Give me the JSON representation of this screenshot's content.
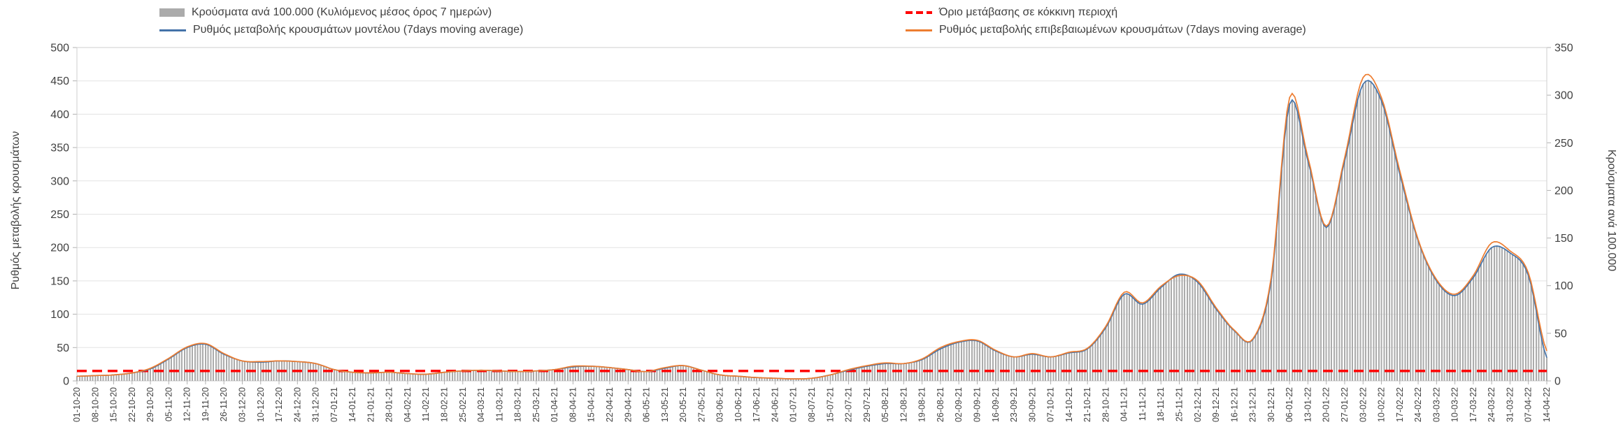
{
  "legend": {
    "items": [
      {
        "id": "bars",
        "label": "Κρούσματα ανά 100.000 (Κυλιόμενος μέσος όρος 7 ημερών)"
      },
      {
        "id": "threshold",
        "label": "Όριο μετάβασης σε κόκκινη περιοχή"
      },
      {
        "id": "model",
        "label": "Ρυθμός μεταβολής κρουσμάτων μοντέλου (7days moving average)"
      },
      {
        "id": "confirmed",
        "label": "Ρυθμός μεταβολής επιβεβαιωμένων κρουσμάτων (7days moving average)"
      }
    ]
  },
  "chart_data": {
    "type": "combo",
    "ylabel_left": "Ρυθμός μεταβολής κρουσμάτων",
    "ylabel_right": "Κρούσματα ανά 100.000",
    "left_ylim": [
      0,
      500
    ],
    "right_ylim": [
      0,
      350
    ],
    "left_ticks": [
      0,
      50,
      100,
      150,
      200,
      250,
      300,
      350,
      400,
      450,
      500
    ],
    "right_ticks": [
      0,
      50,
      100,
      150,
      200,
      250,
      300,
      350
    ],
    "grid": true,
    "legend_position": "top",
    "x": [
      "01-10-20",
      "08-10-20",
      "15-10-20",
      "22-10-20",
      "29-10-20",
      "05-11-20",
      "12-11-20",
      "19-11-20",
      "26-11-20",
      "03-12-20",
      "10-12-20",
      "17-12-20",
      "24-12-20",
      "31-12-20",
      "07-01-21",
      "14-01-21",
      "21-01-21",
      "28-01-21",
      "04-02-21",
      "11-02-21",
      "18-02-21",
      "25-02-21",
      "04-03-21",
      "11-03-21",
      "18-03-21",
      "25-03-21",
      "01-04-21",
      "08-04-21",
      "15-04-21",
      "22-04-21",
      "29-04-21",
      "06-05-21",
      "13-05-21",
      "20-05-21",
      "27-05-21",
      "03-06-21",
      "10-06-21",
      "17-06-21",
      "24-06-21",
      "01-07-21",
      "08-07-21",
      "15-07-21",
      "22-07-21",
      "29-07-21",
      "05-08-21",
      "12-08-21",
      "19-08-21",
      "26-08-21",
      "02-09-21",
      "09-09-21",
      "16-09-21",
      "23-09-21",
      "30-09-21",
      "07-10-21",
      "14-10-21",
      "21-10-21",
      "28-10-21",
      "04-11-21",
      "11-11-21",
      "18-11-21",
      "25-11-21",
      "02-12-21",
      "09-12-21",
      "16-12-21",
      "23-12-21",
      "30-12-21",
      "06-01-22",
      "13-01-22",
      "20-01-22",
      "27-01-22",
      "03-02-22",
      "10-02-22",
      "17-02-22",
      "24-02-22",
      "03-03-22",
      "10-03-22",
      "17-03-22",
      "24-03-22",
      "31-03-22",
      "07-04-22",
      "14-04-22"
    ],
    "series": [
      {
        "id": "cases-per-100k",
        "name": "Κρούσματα ανά 100.000 (Κυλιόμενος μέσος όρος 7 ημερών)",
        "type": "bar",
        "axis": "right",
        "color": "#ababab",
        "values": [
          5,
          6,
          6,
          8,
          13,
          23,
          35,
          39,
          28,
          21,
          20,
          21,
          20,
          18,
          12,
          9,
          8,
          9,
          8,
          7,
          9,
          11,
          11,
          11,
          10,
          11,
          12,
          15,
          15,
          14,
          12,
          10,
          13,
          16,
          11,
          6,
          5,
          4,
          3,
          2,
          3,
          6,
          11,
          15,
          18,
          18,
          22,
          34,
          41,
          42,
          32,
          25,
          28,
          25,
          29,
          34,
          56,
          91,
          81,
          98,
          112,
          104,
          76,
          53,
          43,
          105,
          291,
          231,
          161,
          231,
          312,
          294,
          217,
          147,
          105,
          90,
          109,
          140,
          134,
          111,
          25
        ]
      },
      {
        "id": "model-rate",
        "name": "Ρυθμός μεταβολής κρουσμάτων μοντέλου (7days moving average)",
        "type": "line",
        "axis": "left",
        "color": "#4472a8",
        "values": [
          7,
          8,
          9,
          12,
          18,
          33,
          50,
          55,
          40,
          30,
          28,
          30,
          29,
          26,
          17,
          13,
          12,
          13,
          11,
          10,
          13,
          15,
          16,
          15,
          14,
          15,
          17,
          21,
          22,
          20,
          17,
          14,
          19,
          23,
          16,
          9,
          7,
          5,
          4,
          3,
          4,
          9,
          16,
          22,
          26,
          26,
          32,
          48,
          58,
          60,
          45,
          36,
          40,
          36,
          42,
          48,
          80,
          130,
          115,
          140,
          160,
          148,
          108,
          75,
          62,
          150,
          415,
          330,
          230,
          330,
          445,
          420,
          310,
          210,
          150,
          128,
          155,
          200,
          192,
          158,
          35
        ]
      },
      {
        "id": "confirmed-rate",
        "name": "Ρυθμός μεταβολής επιβεβαιωμένων κρουσμάτων (7days moving average)",
        "type": "line",
        "axis": "left",
        "color": "#ed7d31",
        "values": [
          7,
          8,
          9,
          12,
          19,
          34,
          51,
          56,
          41,
          30,
          29,
          30,
          29,
          26,
          17,
          13,
          12,
          13,
          11,
          10,
          13,
          15,
          16,
          15,
          14,
          15,
          17,
          22,
          22,
          20,
          17,
          14,
          20,
          23,
          16,
          9,
          7,
          5,
          4,
          3,
          4,
          9,
          17,
          23,
          27,
          26,
          33,
          50,
          59,
          61,
          46,
          36,
          41,
          36,
          43,
          49,
          82,
          133,
          117,
          142,
          158,
          150,
          110,
          76,
          63,
          155,
          425,
          335,
          232,
          335,
          455,
          425,
          315,
          212,
          152,
          130,
          158,
          207,
          195,
          162,
          45
        ]
      }
    ],
    "threshold": {
      "name": "Όριο μετάβασης σε κόκκινη περιοχή",
      "axis": "left",
      "value": 15,
      "color": "#ff0000",
      "style": "dashed"
    }
  }
}
